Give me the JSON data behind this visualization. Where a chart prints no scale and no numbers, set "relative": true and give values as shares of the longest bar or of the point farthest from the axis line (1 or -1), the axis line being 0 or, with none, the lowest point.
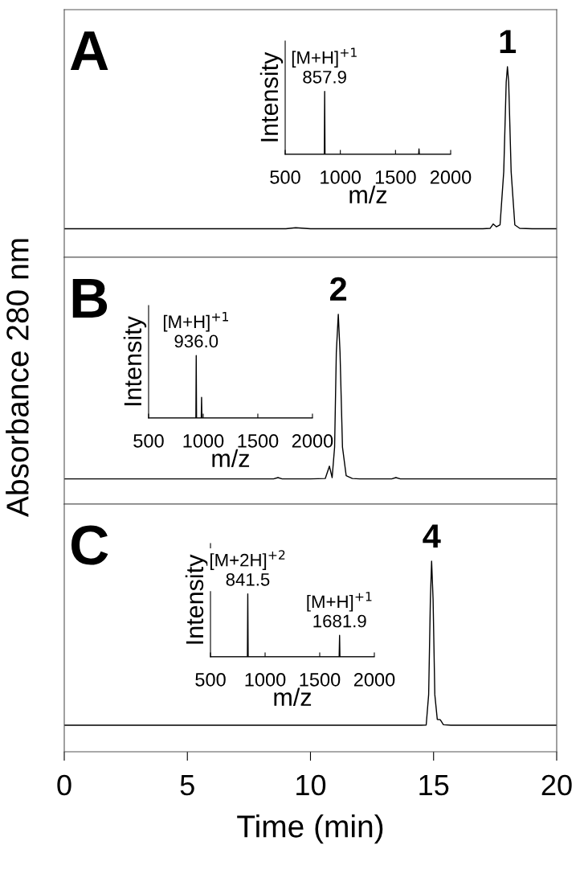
{
  "chart_data": [
    {
      "type": "line",
      "relative": true,
      "xlim": [
        0,
        20
      ],
      "tick_labels": false,
      "annotations": [
        "A",
        {
          "text": "1",
          "x": 18.0,
          "y": 1
        }
      ],
      "series": [
        {
          "color": "#000000",
          "x": [
            0,
            1,
            2,
            3,
            4,
            5,
            6,
            7,
            8,
            9,
            9.4,
            10,
            11,
            12,
            13,
            14,
            15,
            16,
            17,
            17.3,
            17.42,
            17.55,
            17.7,
            17.85,
            17.95,
            18.0,
            18.05,
            18.15,
            18.3,
            18.5,
            19,
            20
          ],
          "values": [
            0.15,
            0.15,
            0.15,
            0.15,
            0.15,
            0.15,
            0.15,
            0.15,
            0.15,
            0.15,
            0.155,
            0.15,
            0.15,
            0.15,
            0.15,
            0.15,
            0.15,
            0.15,
            0.15,
            0.152,
            0.175,
            0.16,
            0.17,
            0.45,
            0.92,
            1,
            0.92,
            0.45,
            0.17,
            0.152,
            0.15,
            0.15
          ]
        }
      ]
    },
    {
      "type": "line",
      "relative": true,
      "xlim": [
        500,
        2000
      ],
      "xticks": [
        500,
        1000,
        1500,
        2000
      ],
      "tick_labels": "x",
      "xlabel": "m/z",
      "ylabel": "Intensity",
      "annotations": [
        {
          "text": "[M+H]$^{+1}$\n857.9",
          "x": 857.9,
          "y": 1
        }
      ],
      "series": [
        {
          "color": "#000000",
          "x": [
            500,
            855,
            857.9,
            861,
            1710,
            1713,
            1716,
            2000
          ],
          "values": [
            0,
            0,
            1,
            0,
            0,
            0.086,
            0,
            0
          ]
        }
      ]
    },
    {
      "type": "line",
      "relative": true,
      "xlim": [
        0,
        20
      ],
      "tick_labels": false,
      "ylabel": "Absorbance 280 nm",
      "annotations": [
        "B",
        {
          "text": "2",
          "x": 11.13,
          "y": 1
        }
      ],
      "series": [
        {
          "color": "#000000",
          "x": [
            0,
            1,
            2,
            3,
            4,
            5,
            6,
            7,
            8,
            8.5,
            8.68,
            8.85,
            9,
            10,
            10.6,
            10.77,
            10.88,
            10.98,
            11.05,
            11.13,
            11.2,
            11.3,
            11.45,
            11.7,
            12,
            13,
            13.3,
            13.47,
            13.65,
            14,
            15,
            16,
            17,
            18,
            19,
            20
          ],
          "values": [
            0.133,
            0.133,
            0.133,
            0.133,
            0.133,
            0.133,
            0.133,
            0.133,
            0.133,
            0.133,
            0.14,
            0.133,
            0.133,
            0.133,
            0.135,
            0.2,
            0.14,
            0.3,
            0.8,
            1,
            0.8,
            0.3,
            0.15,
            0.135,
            0.133,
            0.133,
            0.133,
            0.14,
            0.133,
            0.133,
            0.133,
            0.133,
            0.133,
            0.133,
            0.133,
            0.133
          ]
        }
      ]
    },
    {
      "type": "line",
      "relative": true,
      "xlim": [
        500,
        2000
      ],
      "xticks": [
        500,
        1000,
        1500,
        2000
      ],
      "tick_labels": "x",
      "xlabel": "m/z",
      "ylabel": "Intensity",
      "annotations": [
        {
          "text": "[M+H]$^{+1}$\n936.0",
          "x": 936.0,
          "y": 1
        }
      ],
      "series": [
        {
          "color": "#000000",
          "x": [
            500,
            933,
            936.0,
            939,
            982,
            985,
            988,
            2000
          ],
          "values": [
            0,
            0,
            1,
            0,
            0,
            0.33,
            0,
            0
          ]
        }
      ]
    },
    {
      "type": "line",
      "relative": true,
      "xlim": [
        0,
        20
      ],
      "xticks": [
        0,
        5,
        10,
        15,
        20
      ],
      "tick_labels": "x",
      "xlabel": "Time (min)",
      "annotations": [
        "C",
        {
          "text": "4",
          "x": 14.92,
          "y": 1
        }
      ],
      "series": [
        {
          "color": "#000000",
          "x": [
            0,
            1,
            2,
            3,
            4,
            5,
            6,
            7,
            8,
            9,
            10,
            11,
            12,
            13,
            14,
            14.5,
            14.7,
            14.8,
            14.87,
            14.92,
            14.98,
            15.05,
            15.15,
            15.27,
            15.4,
            15.7,
            16,
            17,
            18,
            19,
            20
          ],
          "values": [
            0.139,
            0.139,
            0.139,
            0.139,
            0.139,
            0.139,
            0.139,
            0.139,
            0.139,
            0.139,
            0.139,
            0.139,
            0.139,
            0.139,
            0.139,
            0.139,
            0.14,
            0.3,
            0.8,
            1,
            0.8,
            0.3,
            0.17,
            0.168,
            0.142,
            0.139,
            0.139,
            0.139,
            0.139,
            0.139,
            0.139
          ]
        }
      ]
    },
    {
      "type": "line",
      "relative": true,
      "xlim": [
        500,
        2000
      ],
      "xticks": [
        500,
        1000,
        1500,
        2000
      ],
      "tick_labels": "x",
      "xlabel": "m/z",
      "ylabel": "Intensity",
      "annotations": [
        {
          "text": "[M+2H]$^{+2}$\n841.5",
          "x": 841.5,
          "y": 1
        },
        {
          "text": "[M+H]$^{+1}$\n1681.9",
          "x": 1681.9,
          "y": 0.34
        }
      ],
      "series": [
        {
          "color": "#000000",
          "x": [
            500,
            838,
            841.5,
            845,
            1678,
            1681.9,
            1685,
            2000
          ],
          "values": [
            0,
            0,
            1,
            0,
            0,
            0.34,
            0,
            0
          ]
        }
      ]
    }
  ]
}
